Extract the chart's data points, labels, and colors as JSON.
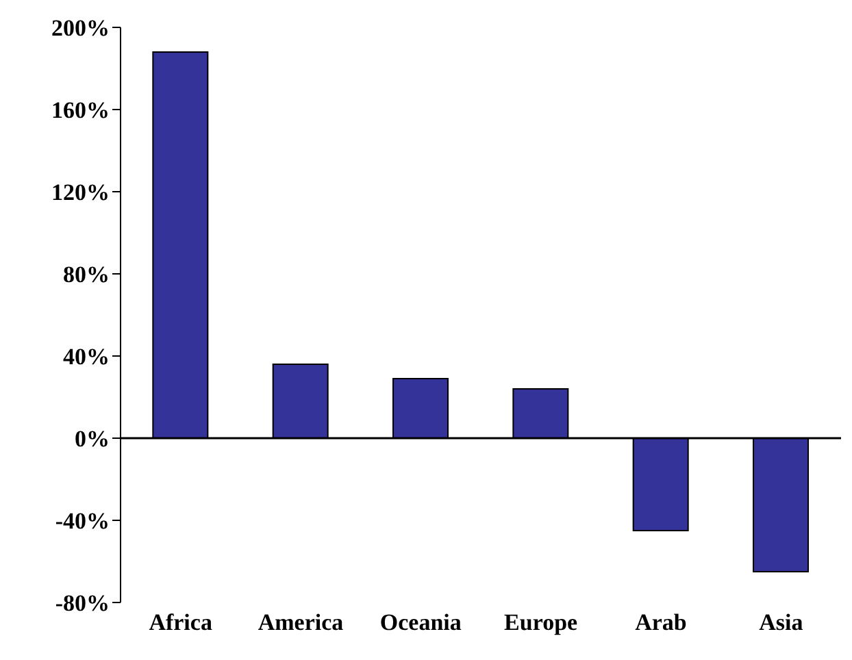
{
  "chart_data": {
    "type": "bar",
    "categories": [
      "Africa",
      "America",
      "Oceania",
      "Europe",
      "Arab",
      "Asia"
    ],
    "values": [
      188,
      36,
      29,
      24,
      -45,
      -65
    ],
    "color": "#333399",
    "ylim": [
      -80,
      200
    ],
    "yticks": [
      {
        "value": -80,
        "label": "-80%"
      },
      {
        "value": -40,
        "label": "-40%"
      },
      {
        "value": 0,
        "label": "0%"
      },
      {
        "value": 40,
        "label": "40%"
      },
      {
        "value": 80,
        "label": "80%"
      },
      {
        "value": 120,
        "label": "120%"
      },
      {
        "value": 160,
        "label": "160%"
      },
      {
        "value": 200,
        "label": "200%"
      }
    ],
    "legend": false
  }
}
